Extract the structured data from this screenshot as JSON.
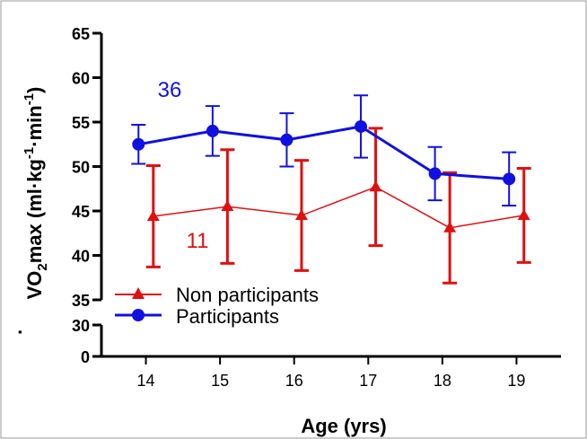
{
  "chart_data": {
    "type": "line",
    "xlabel": "Age (yrs)",
    "ylabel": {
      "prefix": "VO",
      "sub": "2",
      "main": "max (ml·kg",
      "sup1": "-1",
      "mid": "·min",
      "sup2": "-1",
      "suffix": ")"
    },
    "x": [
      14,
      15,
      16,
      17,
      18,
      19
    ],
    "xlim": [
      13.4,
      19.6
    ],
    "yticks_upper": [
      35,
      40,
      45,
      50,
      55,
      60,
      65
    ],
    "yticks_lower": [
      0,
      30
    ],
    "ylim_upper": [
      35,
      65
    ],
    "ylim_lower": [
      0,
      30
    ],
    "axis_break": true,
    "legend_placement": "bottom-left",
    "series": [
      {
        "name": "Participants",
        "color": "#1010e0",
        "marker": "circle",
        "x": [
          13.9,
          14.9,
          15.9,
          16.9,
          17.9,
          18.9
        ],
        "values": [
          52.5,
          54.0,
          53.0,
          54.5,
          49.2,
          48.6
        ],
        "error": [
          2.2,
          2.8,
          3.0,
          3.5,
          3.0,
          3.0
        ],
        "label": "36"
      },
      {
        "name": "Non participants",
        "color": "#e01010",
        "marker": "triangle",
        "x": [
          14.1,
          15.1,
          16.1,
          17.1,
          18.1,
          19.1
        ],
        "values": [
          44.4,
          45.5,
          44.5,
          47.7,
          43.1,
          44.5
        ],
        "error": [
          5.7,
          6.4,
          6.2,
          6.6,
          6.2,
          5.3
        ],
        "label": "11"
      }
    ]
  }
}
